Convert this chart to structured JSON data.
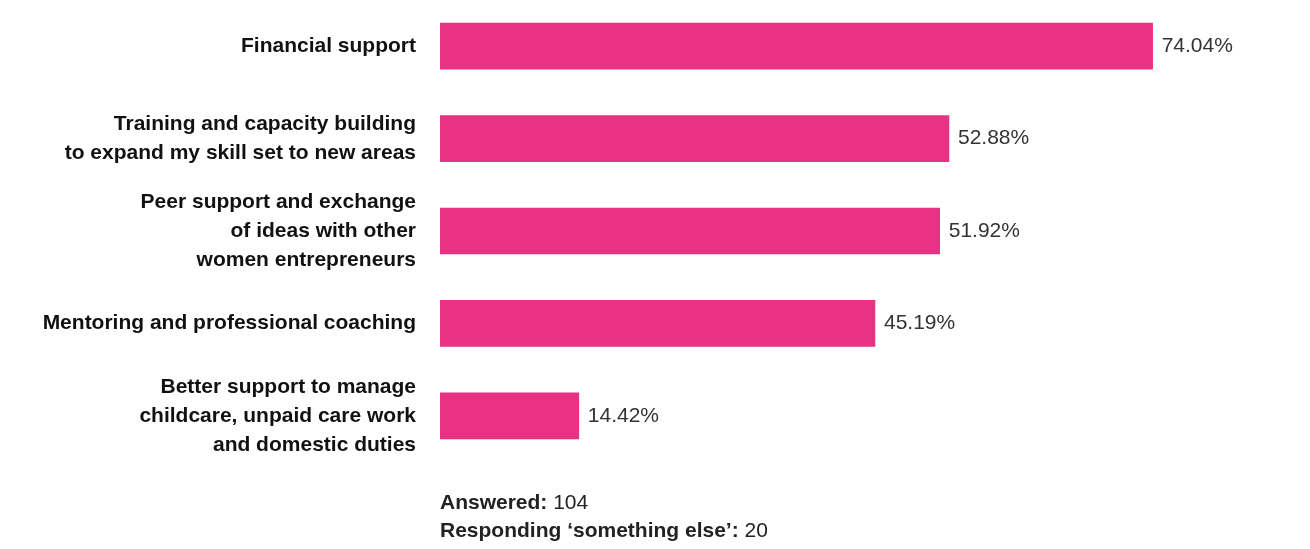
{
  "chart_data": {
    "type": "bar",
    "orientation": "horizontal",
    "categories": [
      "Financial support",
      "Training and capacity building\nto expand my skill set to new areas",
      "Peer support and exchange\nof ideas with other\nwomen entrepreneurs",
      "Mentoring and professional coaching",
      "Better support to manage\nchildcare, unpaid care work\nand domestic duties"
    ],
    "values": [
      74.04,
      52.88,
      51.92,
      45.19,
      14.42
    ],
    "value_labels": [
      "74.04%",
      "52.88%",
      "51.92%",
      "45.19%",
      "14.42%"
    ],
    "color": "#e83283",
    "legend": false,
    "annotations": [
      "Answered: 104",
      "Responding ‘something else’: 20"
    ]
  }
}
